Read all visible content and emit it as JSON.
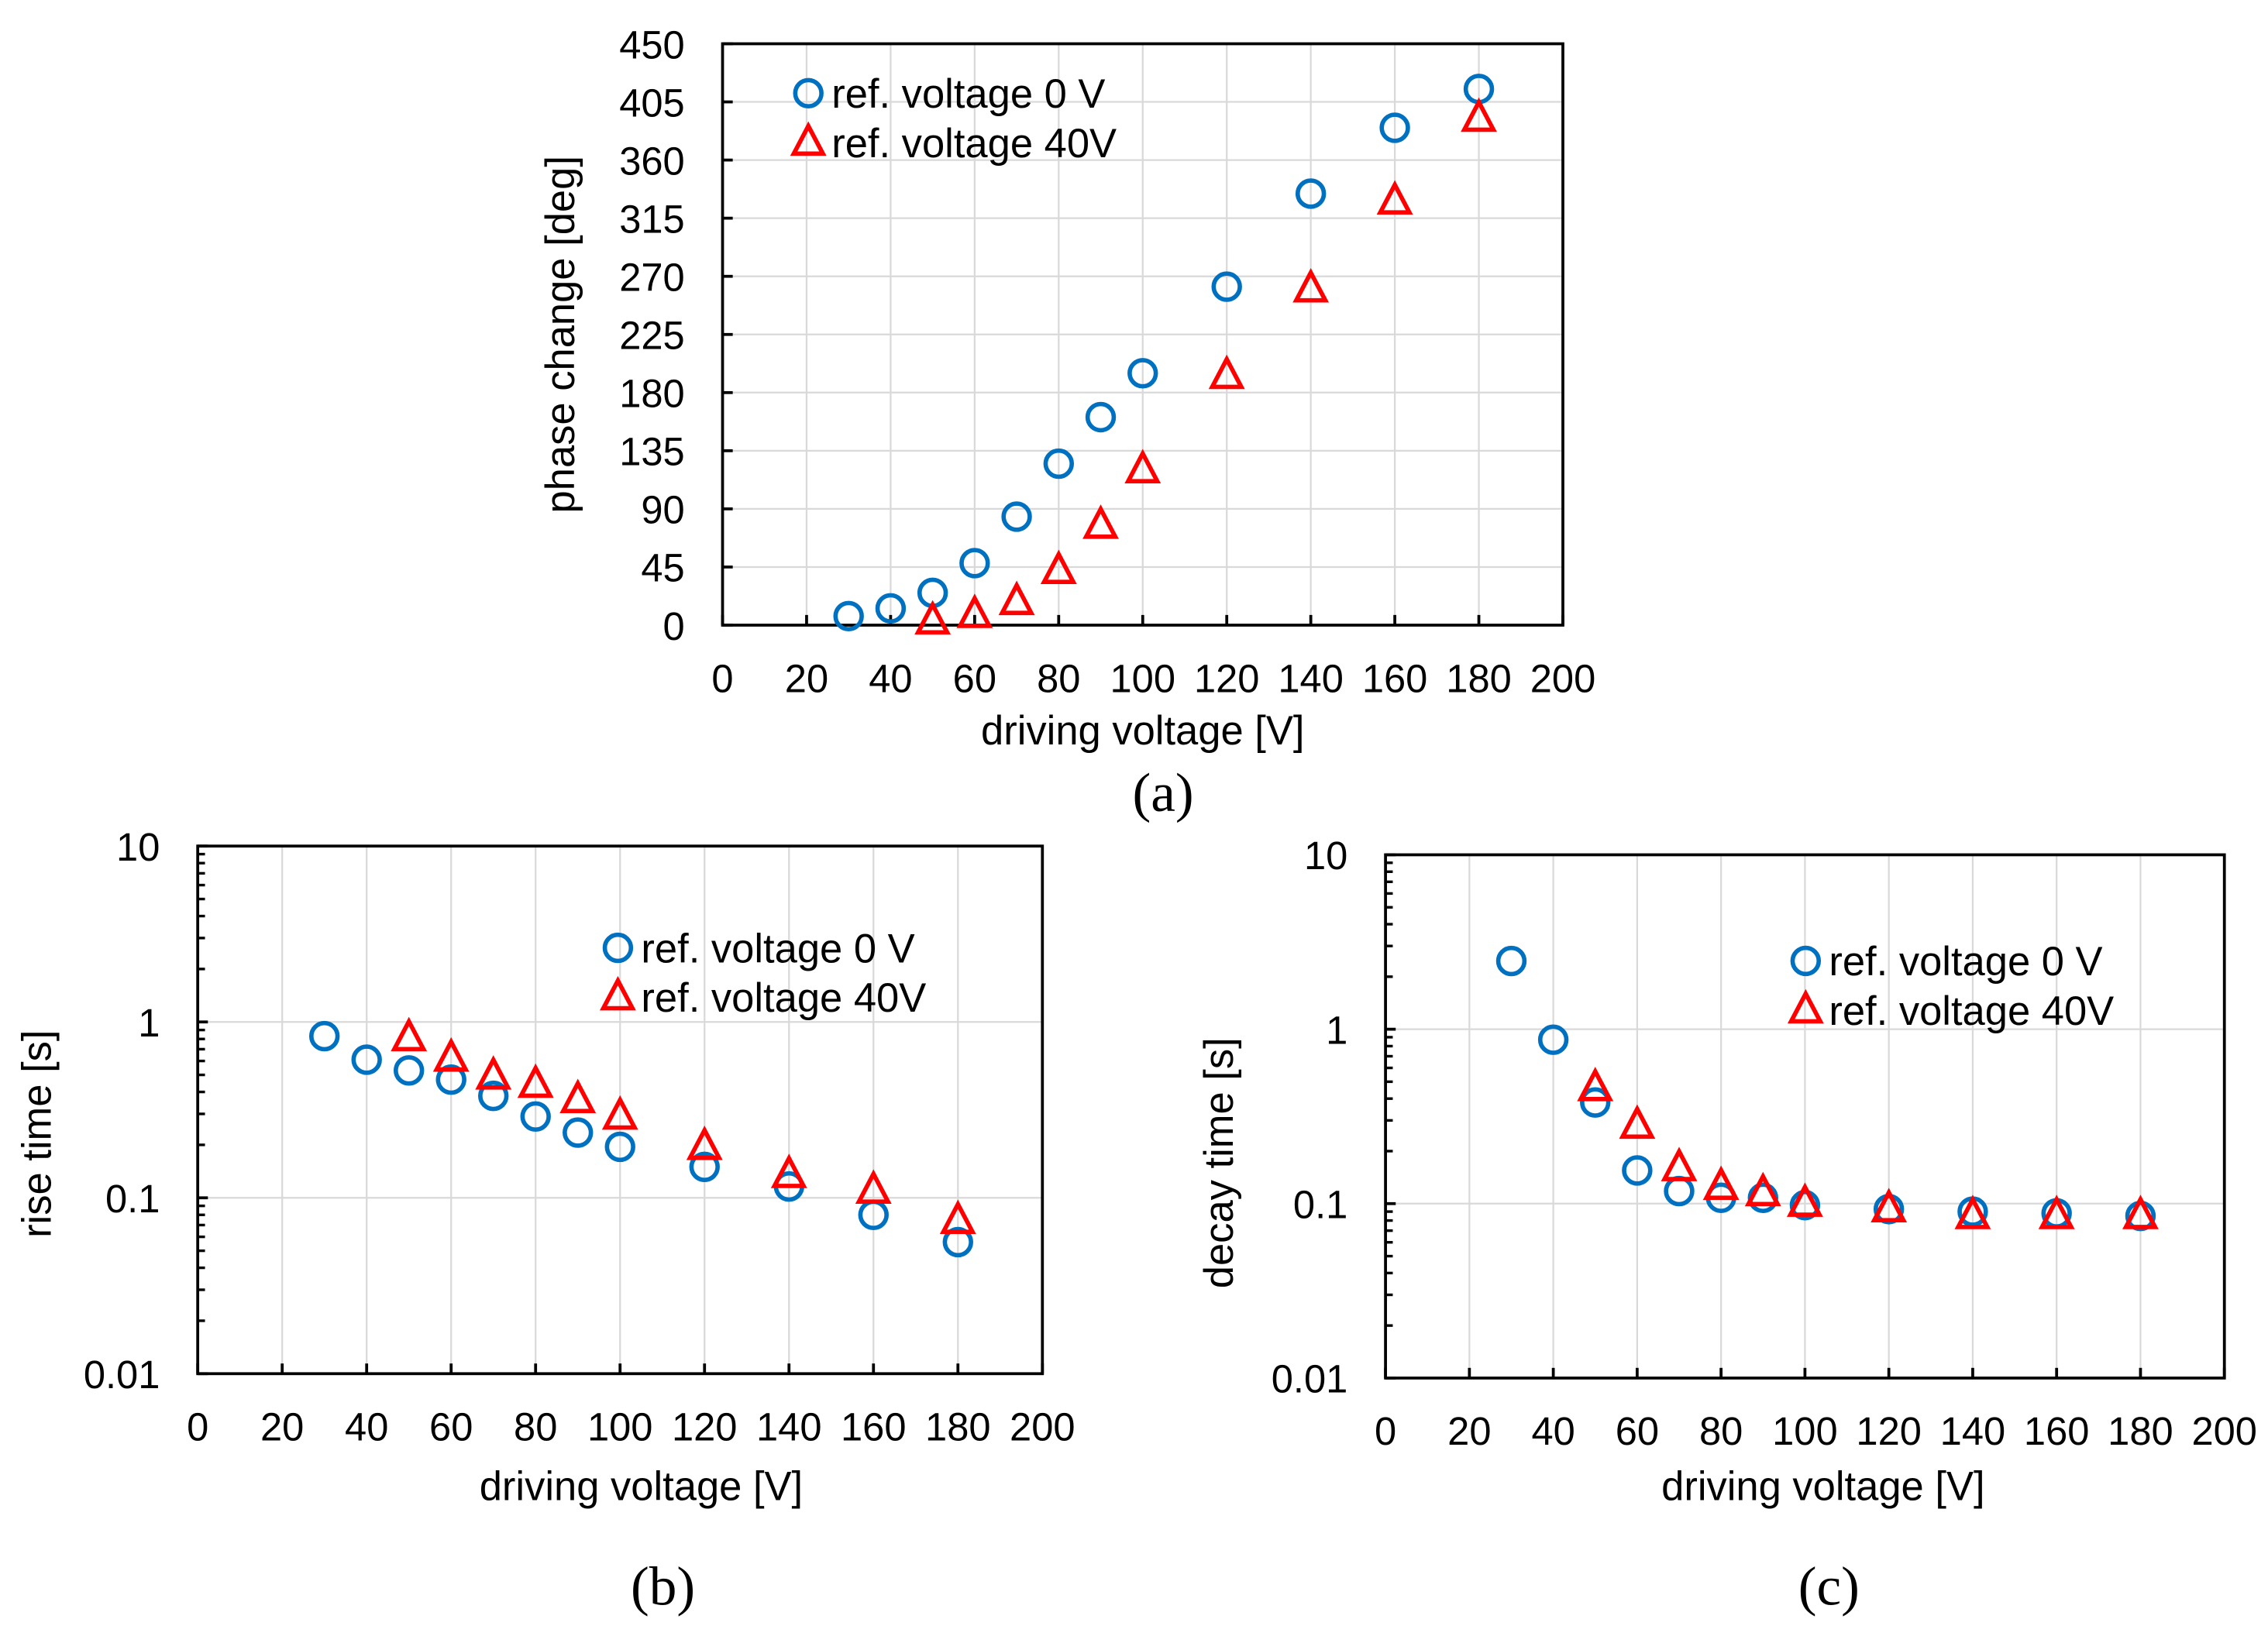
{
  "colors": {
    "series0": "#0070C0",
    "series1": "#FF0000",
    "grid": "#D9D9D9"
  },
  "chart_data": [
    {
      "type": "scatter",
      "caption": "(a)",
      "xlabel": "driving voltage [V]",
      "ylabel": "phase change [deg]",
      "yscale": "linear",
      "xlim": [
        0,
        200
      ],
      "ylim": [
        0,
        450
      ],
      "xticks": [
        0,
        20,
        40,
        60,
        80,
        100,
        120,
        140,
        160,
        180,
        200
      ],
      "yticks": [
        0,
        45,
        90,
        135,
        180,
        225,
        270,
        315,
        360,
        405,
        450
      ],
      "ytick_labels": [
        "0",
        "45",
        "90",
        "135",
        "180",
        "225",
        "270",
        "315",
        "360",
        "405",
        "450"
      ],
      "grid": true,
      "legend_position": "top-left",
      "series": [
        {
          "name": "ref. voltage  0 V",
          "marker": "circle",
          "x": [
            30,
            40,
            50,
            60,
            70,
            80,
            90,
            100,
            120,
            140,
            160,
            180
          ],
          "y": [
            7,
            13,
            25,
            48,
            84,
            125,
            161,
            195,
            262,
            334,
            385,
            415
          ]
        },
        {
          "name": "ref. voltage 40V",
          "marker": "triangle",
          "x": [
            50,
            60,
            70,
            80,
            90,
            100,
            120,
            140,
            160,
            180
          ],
          "y": [
            3,
            8,
            18,
            42,
            77,
            120,
            193,
            260,
            328,
            392
          ]
        }
      ]
    },
    {
      "type": "scatter",
      "caption": "(b)",
      "xlabel": "driving voltage [V]",
      "ylabel": "rise time [s]",
      "yscale": "log",
      "xlim": [
        0,
        200
      ],
      "ylim": [
        0.01,
        10
      ],
      "xticks": [
        0,
        20,
        40,
        60,
        80,
        100,
        120,
        140,
        160,
        180,
        200
      ],
      "yticks": [
        0.01,
        0.1,
        1,
        10
      ],
      "ytick_labels": [
        "0.01",
        "0.1",
        "1",
        "10"
      ],
      "grid": true,
      "legend_position": "top-right",
      "series": [
        {
          "name": "ref. voltage  0 V",
          "marker": "circle",
          "x": [
            30,
            40,
            50,
            60,
            70,
            80,
            90,
            100,
            120,
            140,
            160,
            180
          ],
          "y": [
            0.83,
            0.61,
            0.53,
            0.47,
            0.38,
            0.29,
            0.235,
            0.195,
            0.15,
            0.116,
            0.08,
            0.056
          ]
        },
        {
          "name": "ref. voltage 40V",
          "marker": "triangle",
          "x": [
            50,
            60,
            70,
            80,
            90,
            100,
            120,
            140,
            160,
            180
          ],
          "y": [
            0.81,
            0.62,
            0.49,
            0.44,
            0.36,
            0.29,
            0.195,
            0.135,
            0.11,
            0.074
          ]
        }
      ]
    },
    {
      "type": "scatter",
      "caption": "(c)",
      "xlabel": "driving voltage [V]",
      "ylabel": "decay time [s]",
      "yscale": "log",
      "xlim": [
        0,
        200
      ],
      "ylim": [
        0.01,
        10
      ],
      "xticks": [
        0,
        20,
        40,
        60,
        80,
        100,
        120,
        140,
        160,
        180,
        200
      ],
      "yticks": [
        0.01,
        0.1,
        1,
        10
      ],
      "ytick_labels": [
        "0.01",
        "0.1",
        "1",
        "10"
      ],
      "grid": true,
      "legend_position": "top-right",
      "series": [
        {
          "name": "ref. voltage  0 V",
          "marker": "circle",
          "x": [
            30,
            40,
            50,
            60,
            70,
            80,
            90,
            100,
            120,
            140,
            160,
            180
          ],
          "y": [
            2.46,
            0.87,
            0.38,
            0.155,
            0.118,
            0.108,
            0.108,
            0.098,
            0.093,
            0.09,
            0.088,
            0.085
          ]
        },
        {
          "name": "ref. voltage 40V",
          "marker": "triangle",
          "x": [
            50,
            60,
            70,
            80,
            90,
            100,
            120,
            140,
            160,
            180
          ],
          "y": [
            0.46,
            0.28,
            0.16,
            0.125,
            0.115,
            0.1,
            0.093,
            0.085,
            0.085,
            0.085
          ]
        }
      ]
    }
  ]
}
